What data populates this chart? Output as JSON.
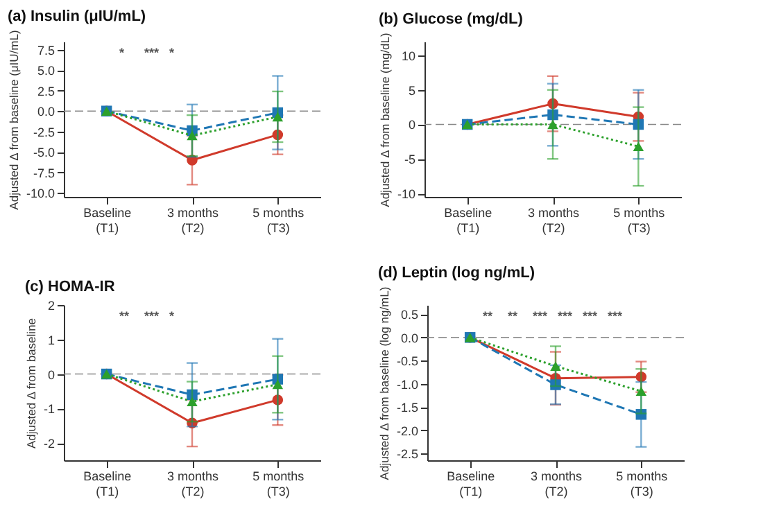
{
  "chart_data": [
    {
      "type": "line",
      "title": "(a) Insulin (μIU/mL)",
      "ylabel": "Adjusted Δ from baseline (μIU/mL)",
      "categories": [
        "Baseline\n(T1)",
        "3 months\n(T2)",
        "5 months\n(T3)"
      ],
      "ylim": [
        -10.5,
        8.5
      ],
      "yticks": [
        {
          "value": -10,
          "label": "-10.0"
        },
        {
          "value": -7.5,
          "label": "-7.5"
        },
        {
          "value": -5,
          "label": "-5.0"
        },
        {
          "value": -2.5,
          "label": "-2.5"
        },
        {
          "value": 0,
          "label": "0.0"
        },
        {
          "value": 2.5,
          "label": "2.5"
        },
        {
          "value": 5,
          "label": "5.0"
        },
        {
          "value": 7.5,
          "label": "7.5"
        }
      ],
      "grid": false,
      "series": [
        {
          "color": "#d03a2b",
          "marker": "circle",
          "line_style": "solid",
          "values": [
            0,
            -6.0,
            -2.9
          ],
          "errors": [
            null,
            3.0,
            2.4
          ]
        },
        {
          "color": "#1f77b4",
          "marker": "square",
          "line_style": "dashed",
          "values": [
            0,
            -2.4,
            -0.2
          ],
          "errors": [
            null,
            3.2,
            4.5
          ]
        },
        {
          "color": "#2ca02c",
          "marker": "triangle",
          "line_style": "dotted",
          "values": [
            0,
            -3.0,
            -0.7
          ],
          "errors": [
            null,
            2.5,
            3.1
          ]
        }
      ],
      "ref_lines": [
        {
          "axis": "y",
          "value": 0,
          "color": "#888888",
          "line_style": "dashed"
        }
      ],
      "annotations": [
        "*",
        "***",
        "*"
      ]
    },
    {
      "type": "line",
      "title": "(b) Glucose (mg/dL)",
      "ylabel": "Adjusted Δ from baseline (mg/dL)",
      "categories": [
        "Baseline\n(T1)",
        "3 months\n(T2)",
        "5 months\n(T3)"
      ],
      "ylim": [
        -10.5,
        12
      ],
      "yticks": [
        -10,
        -5,
        0,
        5,
        10
      ],
      "grid": false,
      "series": [
        {
          "color": "#d03a2b",
          "marker": "circle",
          "line_style": "solid",
          "values": [
            0,
            3.0,
            1.1
          ],
          "errors": [
            null,
            4.0,
            3.5
          ]
        },
        {
          "color": "#1f77b4",
          "marker": "square",
          "line_style": "dashed",
          "values": [
            0,
            1.4,
            0
          ],
          "errors": [
            null,
            4.5,
            5.0
          ]
        },
        {
          "color": "#2ca02c",
          "marker": "triangle",
          "line_style": "dotted",
          "values": [
            0,
            0,
            -3.2
          ],
          "errors": [
            null,
            5.0,
            5.7
          ]
        }
      ],
      "ref_lines": [
        {
          "axis": "y",
          "value": 0,
          "color": "#888888",
          "line_style": "dashed"
        }
      ]
    },
    {
      "type": "line",
      "title": "(c) HOMA-IR",
      "ylabel": "Adjusted Δ from baseline",
      "categories": [
        "Baseline\n(T1)",
        "3 months\n(T2)",
        "5 months\n(T3)"
      ],
      "ylim": [
        -2.5,
        2
      ],
      "yticks": [
        -2,
        -1,
        0,
        1,
        2
      ],
      "grid": false,
      "series": [
        {
          "color": "#d03a2b",
          "marker": "circle",
          "line_style": "solid",
          "values": [
            0,
            -1.42,
            -0.75
          ],
          "errors": [
            null,
            0.68,
            0.73
          ]
        },
        {
          "color": "#1f77b4",
          "marker": "square",
          "line_style": "dashed",
          "values": [
            0,
            -0.6,
            -0.15
          ],
          "errors": [
            null,
            0.92,
            1.17
          ]
        },
        {
          "color": "#2ca02c",
          "marker": "triangle",
          "line_style": "dotted",
          "values": [
            0,
            -0.8,
            -0.3
          ],
          "errors": [
            null,
            0.58,
            0.82
          ]
        }
      ],
      "ref_lines": [
        {
          "axis": "y",
          "value": 0,
          "color": "#888888",
          "line_style": "dashed"
        }
      ],
      "annotations": [
        "**",
        "***",
        "*"
      ]
    },
    {
      "type": "line",
      "title": "(d) Leptin (log ng/mL)",
      "ylabel": "Adjusted Δ from baseline (log ng/mL)",
      "categories": [
        "Baseline\n(T1)",
        "3 months\n(T2)",
        "5 months\n(T3)"
      ],
      "ylim": [
        -2.65,
        0.7
      ],
      "yticks": [
        {
          "value": -2.5,
          "label": "-2.5"
        },
        {
          "value": -2,
          "label": "-2.0"
        },
        {
          "value": -1.5,
          "label": "-1.5"
        },
        {
          "value": -1,
          "label": "-1.0"
        },
        {
          "value": -0.5,
          "label": "-0.5"
        },
        {
          "value": 0,
          "label": "0.0"
        },
        {
          "value": 0.5,
          "label": "0.5"
        }
      ],
      "grid": false,
      "series": [
        {
          "color": "#d03a2b",
          "marker": "circle",
          "line_style": "solid",
          "values": [
            0,
            -0.88,
            -0.85
          ],
          "errors": [
            null,
            0.57,
            0.33
          ]
        },
        {
          "color": "#1f77b4",
          "marker": "square",
          "line_style": "dashed",
          "values": [
            0,
            -1.02,
            -1.66
          ],
          "errors": [
            null,
            0.42,
            0.7
          ]
        },
        {
          "color": "#2ca02c",
          "marker": "triangle",
          "line_style": "dotted",
          "values": [
            0,
            -0.62,
            -1.16
          ],
          "errors": [
            null,
            0.43,
            0.48
          ]
        }
      ],
      "ref_lines": [
        {
          "axis": "y",
          "value": 0,
          "color": "#888888",
          "line_style": "dashed"
        }
      ],
      "annotations": [
        "**",
        "**",
        "***",
        "***",
        "***",
        "***"
      ]
    }
  ]
}
